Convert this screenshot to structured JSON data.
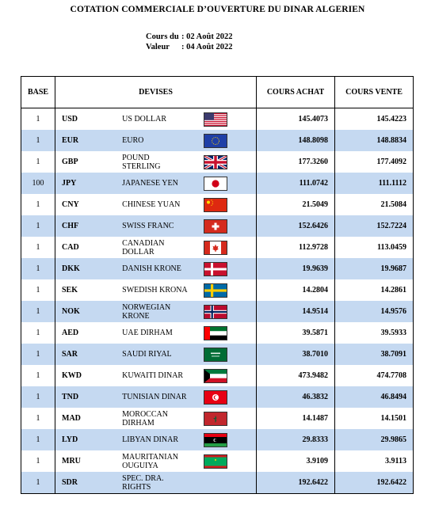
{
  "header": {
    "title": "COTATION COMMERCIALE D’OUVERTURE DU DINAR ALGERIEN",
    "cours_label": "Cours du",
    "cours_value": ": 02 Août 2022",
    "valeur_label": "Valeur",
    "valeur_value": ": 04 Août 2022"
  },
  "table": {
    "columns": {
      "base": "BASE",
      "devises": "DEVISES",
      "achat": "COURS ACHAT",
      "vente": "COURS VENTE"
    },
    "rows": [
      {
        "base": "1",
        "code": "USD",
        "name": "US DOLLAR",
        "flag": "us-flag-icon",
        "achat": "145.4073",
        "vente": "145.4223"
      },
      {
        "base": "1",
        "code": "EUR",
        "name": "EURO",
        "flag": "eu-flag-icon",
        "achat": "148.8098",
        "vente": "148.8834"
      },
      {
        "base": "1",
        "code": "GBP",
        "name": "POUND STERLING",
        "flag": "uk-flag-icon",
        "achat": "177.3260",
        "vente": "177.4092"
      },
      {
        "base": "100",
        "code": "JPY",
        "name": "JAPANESE YEN",
        "flag": "japan-flag-icon",
        "achat": "111.0742",
        "vente": "111.1112"
      },
      {
        "base": "1",
        "code": "CNY",
        "name": "CHINESE YUAN",
        "flag": "china-flag-icon",
        "achat": "21.5049",
        "vente": "21.5084"
      },
      {
        "base": "1",
        "code": "CHF",
        "name": "SWISS FRANC",
        "flag": "swiss-flag-icon",
        "achat": "152.6426",
        "vente": "152.7224"
      },
      {
        "base": "1",
        "code": "CAD",
        "name": "CANADIAN DOLLAR",
        "flag": "canada-flag-icon",
        "achat": "112.9728",
        "vente": "113.0459"
      },
      {
        "base": "1",
        "code": "DKK",
        "name": "DANISH KRONE",
        "flag": "denmark-flag-icon",
        "achat": "19.9639",
        "vente": "19.9687"
      },
      {
        "base": "1",
        "code": "SEK",
        "name": "SWEDISH KRONA",
        "flag": "sweden-flag-icon",
        "achat": "14.2804",
        "vente": "14.2861"
      },
      {
        "base": "1",
        "code": "NOK",
        "name": "NORWEGIAN KRONE",
        "flag": "norway-flag-icon",
        "achat": "14.9514",
        "vente": "14.9576"
      },
      {
        "base": "1",
        "code": "AED",
        "name": "UAE DIRHAM",
        "flag": "uae-flag-icon",
        "achat": "39.5871",
        "vente": "39.5933"
      },
      {
        "base": "1",
        "code": "SAR",
        "name": "SAUDI RIYAL",
        "flag": "saudi-flag-icon",
        "achat": "38.7010",
        "vente": "38.7091"
      },
      {
        "base": "1",
        "code": "KWD",
        "name": "KUWAITI DINAR",
        "flag": "kuwait-flag-icon",
        "achat": "473.9482",
        "vente": "474.7708"
      },
      {
        "base": "1",
        "code": "TND",
        "name": "TUNISIAN DINAR",
        "flag": "tunisia-flag-icon",
        "achat": "46.3832",
        "vente": "46.8494"
      },
      {
        "base": "1",
        "code": "MAD",
        "name": "MOROCCAN DIRHAM",
        "flag": "morocco-flag-icon",
        "achat": "14.1487",
        "vente": "14.1501"
      },
      {
        "base": "1",
        "code": "LYD",
        "name": "LIBYAN DINAR",
        "flag": "libya-flag-icon",
        "achat": "29.8333",
        "vente": "29.9865"
      },
      {
        "base": "1",
        "code": "MRU",
        "name": "MAURITANIAN OUGUIYA",
        "flag": "mauritania-flag-icon",
        "achat": "3.9109",
        "vente": "3.9113"
      },
      {
        "base": "1",
        "code": "SDR",
        "name": "SPEC. DRA. RIGHTS",
        "flag": "",
        "achat": "192.6422",
        "vente": "192.6422"
      }
    ]
  },
  "colors": {
    "alt_row": "#c5d9f1"
  }
}
